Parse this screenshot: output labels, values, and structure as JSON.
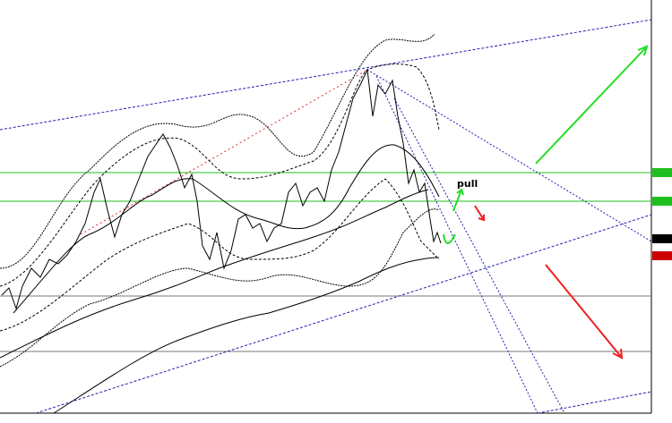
{
  "annotations": [
    "pull"
  ]
}
